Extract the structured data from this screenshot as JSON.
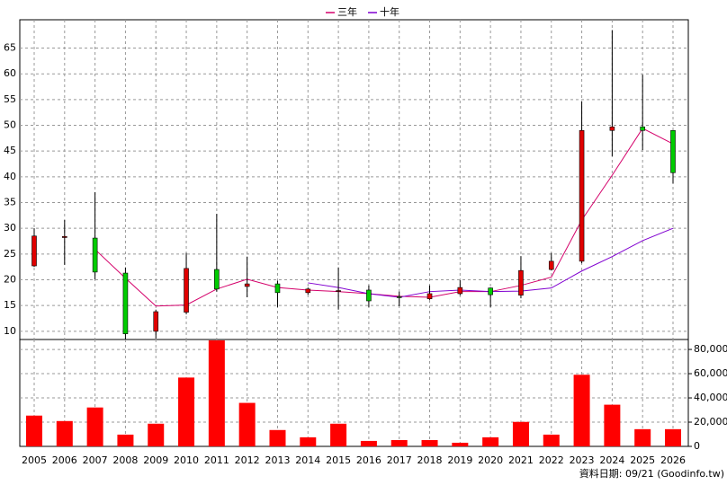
{
  "chart_data": {
    "type": "candlestick",
    "categories": [
      "2005",
      "2006",
      "2007",
      "2008",
      "2009",
      "2010",
      "2011",
      "2012",
      "2013",
      "2014",
      "2015",
      "2016",
      "2017",
      "2018",
      "2019",
      "2020",
      "2021",
      "2022",
      "2023",
      "2024",
      "2025",
      "2026"
    ],
    "open": [
      22.7,
      28.2,
      28.1,
      21.3,
      10.0,
      13.7,
      22.0,
      18.7,
      19.2,
      17.5,
      17.8,
      18.0,
      16.7,
      16.3,
      17.3,
      18.4,
      17.0,
      22.0,
      23.6,
      49.0,
      49.7,
      49.0
    ],
    "high": [
      30.0,
      31.6,
      37.0,
      22.4,
      14.2,
      25.2,
      32.8,
      24.5,
      19.8,
      18.5,
      22.4,
      18.9,
      17.7,
      18.9,
      19.9,
      18.5,
      24.6,
      25.2,
      54.6,
      68.5,
      59.8,
      49.0
    ],
    "low": [
      22.5,
      22.9,
      20.1,
      8.4,
      8.6,
      13.3,
      17.7,
      16.6,
      14.7,
      17.1,
      14.2,
      14.7,
      14.9,
      16.1,
      17.0,
      14.7,
      16.4,
      21.8,
      23.2,
      44.0,
      45.2,
      38.7
    ],
    "close": [
      28.5,
      28.4,
      21.5,
      9.5,
      13.8,
      22.2,
      18.2,
      19.2,
      17.5,
      18.2,
      17.9,
      15.9,
      16.6,
      17.3,
      18.5,
      17.1,
      21.8,
      23.6,
      49.0,
      49.7,
      49.0,
      40.8
    ],
    "up_color": "#e00000",
    "down_color": "#00cc00",
    "series": [
      {
        "name": "三年",
        "color": "#d4006a",
        "values": [
          null,
          null,
          25.9,
          20.3,
          14.9,
          15.1,
          18.2,
          20.1,
          18.5,
          18.0,
          17.7,
          17.3,
          16.8,
          16.6,
          17.7,
          17.7,
          18.9,
          20.5,
          31.6,
          40.3,
          49.4,
          46.4
        ]
      },
      {
        "name": "十年",
        "color": "#8000d0",
        "values": [
          null,
          null,
          null,
          null,
          null,
          null,
          null,
          null,
          null,
          19.4,
          18.5,
          17.3,
          16.6,
          17.7,
          18.0,
          17.7,
          17.8,
          18.4,
          21.7,
          24.5,
          27.6,
          30.0
        ]
      }
    ],
    "volume": {
      "axis": "y2",
      "color": "#ff0000",
      "values": [
        25400,
        20900,
        32100,
        9700,
        18700,
        56800,
        87500,
        35900,
        13500,
        7500,
        18700,
        4500,
        5200,
        5200,
        3000,
        7500,
        20200,
        9700,
        59100,
        34400,
        14200,
        14200
      ]
    },
    "ylim": [
      8.4,
      70.5
    ],
    "yticks": [
      10,
      15,
      20,
      25,
      30,
      35,
      40,
      45,
      50,
      55,
      60,
      65
    ],
    "y2lim": [
      0,
      88200
    ],
    "y2ticks": [
      0,
      {
        "value": 20000,
        "label": "20,000"
      },
      {
        "value": 40000,
        "label": "40,000"
      },
      {
        "value": 60000,
        "label": "60,000"
      },
      {
        "value": 80000,
        "label": "80,000"
      }
    ],
    "grid": true,
    "legend": "top",
    "footer": "資料日期: 09/21  (Goodinfo.tw)"
  }
}
